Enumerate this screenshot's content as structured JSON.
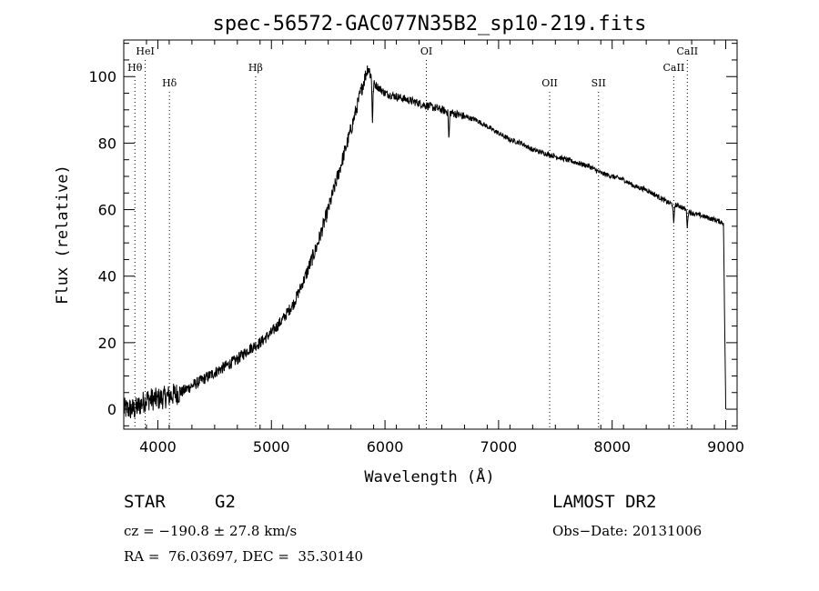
{
  "chart_data": {
    "type": "line",
    "title": "spec-56572-GAC077N35B2_sp10-219.fits",
    "xlabel": "Wavelength (Å)",
    "ylabel": "Flux (relative)",
    "xlim": [
      3700,
      9100
    ],
    "ylim": [
      -6,
      111
    ],
    "xticks": [
      4000,
      5000,
      6000,
      7000,
      8000,
      9000
    ],
    "yticks": [
      0,
      20,
      40,
      60,
      80,
      100
    ],
    "grid": false,
    "series": [
      {
        "x": [
          3700,
          3800,
          3900,
          4000,
          4100,
          4200,
          4300,
          4400,
          4500,
          4600,
          4700,
          4800,
          4900,
          5000,
          5100,
          5200,
          5300,
          5400,
          5500,
          5600,
          5700,
          5800,
          5850,
          5900,
          6000,
          6100,
          6200,
          6300,
          6400,
          6500,
          6600,
          6700,
          6800,
          6900,
          7000,
          7100,
          7200,
          7300,
          7400,
          7500,
          7600,
          7700,
          7800,
          7900,
          8000,
          8100,
          8200,
          8300,
          8400,
          8500,
          8600,
          8700,
          8800,
          8900,
          8980,
          9000
        ],
        "y": [
          0,
          0,
          3,
          3,
          4,
          5,
          7,
          9,
          11,
          13,
          15,
          18,
          20,
          23,
          27,
          32,
          40,
          49,
          60,
          72,
          84,
          97,
          103,
          98,
          95,
          94,
          93,
          92,
          91,
          90,
          89,
          88,
          87,
          85,
          83,
          81,
          80,
          78,
          77,
          76,
          75,
          74,
          73,
          71,
          70,
          69,
          67,
          66,
          64,
          62,
          61,
          59,
          58,
          57,
          56,
          0
        ]
      }
    ],
    "absorption_dips": [
      {
        "x": 5890,
        "depth": 12
      },
      {
        "x": 6563,
        "depth": 8
      },
      {
        "x": 8542,
        "depth": 6
      },
      {
        "x": 8662,
        "depth": 5
      }
    ],
    "spectral_lines": [
      {
        "label": "HeI",
        "x": 3889
      },
      {
        "label": "Hθ",
        "x": 3798
      },
      {
        "label": "Hδ",
        "x": 4102
      },
      {
        "label": "Hβ",
        "x": 4861
      },
      {
        "label": "OI",
        "x": 6364
      },
      {
        "label": "OII",
        "x": 7450
      },
      {
        "label": "SII",
        "x": 7880
      },
      {
        "label": "CaII",
        "x": 8542
      },
      {
        "label": "CaII",
        "x": 8662
      }
    ]
  },
  "footer": {
    "object_type": "STAR",
    "subclass": "G2",
    "survey": "LAMOST DR2",
    "redshift": "cz = −190.8 ± 27.8 km/s",
    "obs_date": "Obs−Date: 20131006",
    "coords": "RA =  76.03697, DEC =  35.30140"
  }
}
